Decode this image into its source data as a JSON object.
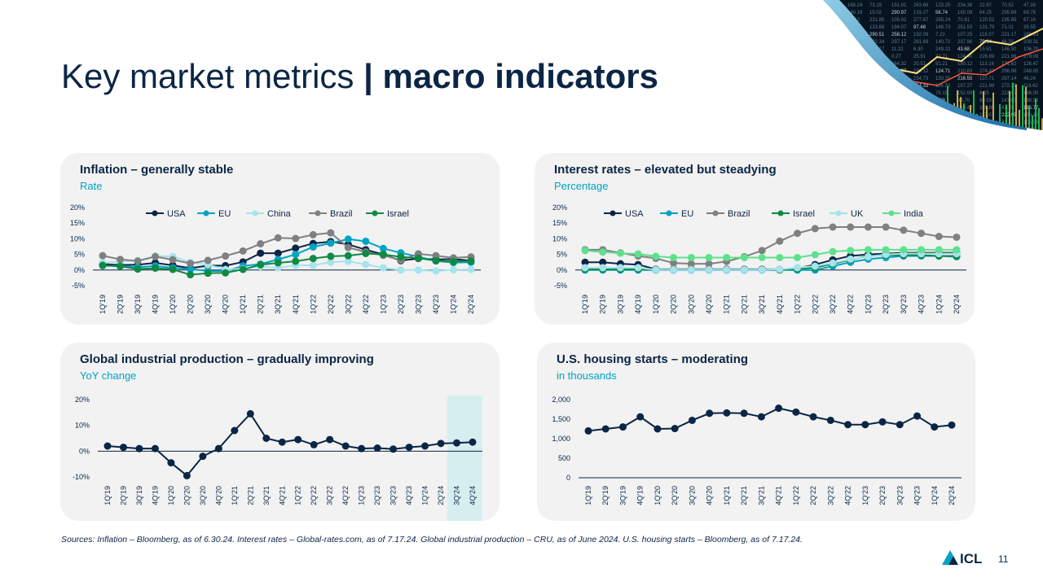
{
  "title": {
    "light": "Key market metrics",
    "sep": " | ",
    "bold": "macro indicators"
  },
  "quarters": [
    "1Q'19",
    "2Q'19",
    "3Q'19",
    "4Q'19",
    "1Q'20",
    "2Q'20",
    "3Q'20",
    "4Q'20",
    "1Q'21",
    "2Q'21",
    "3Q'21",
    "4Q'21",
    "1Q'22",
    "2Q'22",
    "3Q'22",
    "4Q'22",
    "1Q'23",
    "2Q'23",
    "3Q'23",
    "4Q'23",
    "1Q'24",
    "2Q'24"
  ],
  "chart_data": [
    {
      "id": "inflation",
      "type": "line",
      "title": "Inflation – generally stable",
      "subtitle": "Rate",
      "ylim": [
        -5,
        20
      ],
      "yticks": [
        "20%",
        "15%",
        "10%",
        "5%",
        "0%",
        "-5%"
      ],
      "ytick_values": [
        20,
        15,
        10,
        5,
        0,
        -5
      ],
      "series": [
        {
          "name": "USA",
          "color": "#0b2545",
          "values": [
            1.9,
            1.6,
            1.7,
            2.3,
            1.5,
            0.6,
            1.4,
            1.4,
            2.6,
            5.4,
            5.4,
            7.0,
            8.5,
            9.1,
            8.2,
            6.5,
            5.0,
            3.0,
            3.7,
            3.4,
            3.5,
            3.0
          ]
        },
        {
          "name": "EU",
          "color": "#00a3c4",
          "values": [
            1.4,
            1.3,
            0.9,
            1.3,
            0.7,
            0.3,
            -0.3,
            -0.3,
            1.3,
            1.9,
            3.4,
            5.0,
            7.4,
            8.6,
            9.9,
            9.2,
            6.9,
            5.5,
            4.3,
            2.9,
            2.4,
            2.5
          ]
        },
        {
          "name": "China",
          "color": "#a6e3ec",
          "values": [
            2.3,
            2.7,
            3.0,
            4.5,
            4.3,
            2.5,
            1.7,
            0.2,
            0.4,
            1.1,
            0.7,
            1.5,
            1.5,
            2.5,
            2.8,
            1.8,
            0.7,
            0.0,
            0.0,
            -0.3,
            0.1,
            0.2
          ]
        },
        {
          "name": "Brazil",
          "color": "#808080",
          "values": [
            4.6,
            3.4,
            2.9,
            4.3,
            3.3,
            2.1,
            3.1,
            4.5,
            6.1,
            8.4,
            10.3,
            10.1,
            11.3,
            11.9,
            7.2,
            5.8,
            4.7,
            3.2,
            5.2,
            4.6,
            3.9,
            4.2
          ]
        },
        {
          "name": "Israel",
          "color": "#0e8a43",
          "values": [
            1.5,
            1.2,
            0.3,
            0.6,
            0.2,
            -1.5,
            -1.0,
            -0.9,
            0.2,
            1.7,
            2.3,
            2.8,
            3.7,
            4.4,
            4.6,
            5.3,
            5.0,
            4.2,
            3.8,
            3.0,
            2.7,
            2.9
          ]
        }
      ]
    },
    {
      "id": "rates",
      "type": "line",
      "title": "Interest rates – elevated but steadying",
      "subtitle": "Percentage",
      "ylim": [
        -5,
        20
      ],
      "yticks": [
        "20%",
        "15%",
        "10%",
        "5%",
        "0%",
        "-5%"
      ],
      "ytick_values": [
        20,
        15,
        10,
        5,
        0,
        -5
      ],
      "series": [
        {
          "name": "USA",
          "color": "#0b2545",
          "values": [
            2.5,
            2.5,
            2.0,
            1.75,
            0.25,
            0.25,
            0.25,
            0.25,
            0.25,
            0.25,
            0.25,
            0.25,
            0.5,
            1.75,
            3.25,
            4.5,
            5.0,
            5.25,
            5.5,
            5.5,
            5.5,
            5.5
          ]
        },
        {
          "name": "EU",
          "color": "#00a3c4",
          "values": [
            0,
            0,
            0,
            0,
            0,
            0,
            0,
            0,
            0,
            0,
            0,
            0,
            0,
            0,
            1.25,
            2.5,
            3.5,
            4.0,
            4.5,
            4.5,
            4.5,
            4.25
          ]
        },
        {
          "name": "Brazil",
          "color": "#808080",
          "values": [
            6.5,
            6.5,
            5.5,
            4.5,
            3.75,
            2.25,
            2.0,
            2.0,
            2.75,
            4.25,
            6.25,
            9.25,
            11.75,
            13.25,
            13.75,
            13.75,
            13.75,
            13.75,
            12.75,
            11.75,
            10.75,
            10.5
          ]
        },
        {
          "name": "Israel",
          "color": "#0e8a43",
          "values": [
            0.25,
            0.25,
            0.25,
            0.25,
            0.1,
            0.1,
            0.1,
            0.1,
            0.1,
            0.1,
            0.1,
            0.1,
            0.35,
            0.75,
            2.0,
            3.25,
            4.5,
            4.75,
            4.75,
            4.75,
            4.5,
            4.5
          ]
        },
        {
          "name": "UK",
          "color": "#a6e3ec",
          "values": [
            0.75,
            0.75,
            0.75,
            0.75,
            0.1,
            0.1,
            0.1,
            0.1,
            0.1,
            0.1,
            0.1,
            0.25,
            0.75,
            1.25,
            2.25,
            3.5,
            4.25,
            5.0,
            5.25,
            5.25,
            5.25,
            5.25
          ]
        },
        {
          "name": "India",
          "color": "#5fe08f",
          "values": [
            6.25,
            5.75,
            5.4,
            5.15,
            4.4,
            4.0,
            4.0,
            4.0,
            4.0,
            4.0,
            4.0,
            4.0,
            4.0,
            4.9,
            5.9,
            6.25,
            6.5,
            6.5,
            6.5,
            6.5,
            6.5,
            6.5
          ]
        }
      ]
    },
    {
      "id": "production",
      "type": "line",
      "title": "Global industrial production – gradually improving",
      "subtitle": "YoY change",
      "ylim": [
        -10,
        20
      ],
      "yticks": [
        "20%",
        "10%",
        "0%",
        "-10%"
      ],
      "ytick_values": [
        20,
        10,
        0,
        -10
      ],
      "categories": [
        "1Q'19",
        "2Q'19",
        "3Q'19",
        "4Q'19",
        "1Q'20",
        "2Q'20",
        "3Q'20",
        "4Q'20",
        "1Q'21",
        "2Q'21",
        "3Q'21",
        "4Q'21",
        "1Q'22",
        "2Q'22",
        "3Q'22",
        "4Q'22",
        "1Q'23",
        "2Q'23",
        "3Q'23",
        "4Q'23",
        "1Q'24",
        "2Q'24",
        "3Q'24",
        "4Q'24"
      ],
      "highlight": [
        "3Q'24",
        "4Q'24"
      ],
      "series": [
        {
          "name": "",
          "color": "#0b2545",
          "values": [
            2.0,
            1.5,
            1.0,
            1.0,
            -4.5,
            -9.5,
            -2.0,
            1.0,
            8.0,
            14.5,
            5.0,
            3.5,
            4.5,
            2.5,
            4.5,
            2.0,
            1.0,
            1.2,
            0.8,
            1.5,
            2.0,
            3.0,
            3.2,
            3.5
          ]
        }
      ]
    },
    {
      "id": "housing",
      "type": "line",
      "title": "U.S. housing starts – moderating",
      "subtitle": "in thousands",
      "ylim": [
        0,
        2000
      ],
      "yticks": [
        "2,000",
        "1,500",
        "1,000",
        "500",
        "0"
      ],
      "ytick_values": [
        2000,
        1500,
        1000,
        500,
        0
      ],
      "series": [
        {
          "name": "",
          "color": "#0b2545",
          "values": [
            1200,
            1250,
            1300,
            1560,
            1250,
            1260,
            1470,
            1650,
            1660,
            1650,
            1560,
            1780,
            1680,
            1560,
            1470,
            1360,
            1360,
            1430,
            1360,
            1580,
            1300,
            1350
          ]
        }
      ]
    }
  ],
  "sources": "Sources: Inflation – Bloomberg, as of 6.30.24. Interest rates – Global-rates.com, as of 7.17.24. Global industrial production – CRU, as of June 2024. U.S. housing starts – Bloomberg, as of 7.17.24.",
  "page_number": "11",
  "logo_text": "ICL"
}
